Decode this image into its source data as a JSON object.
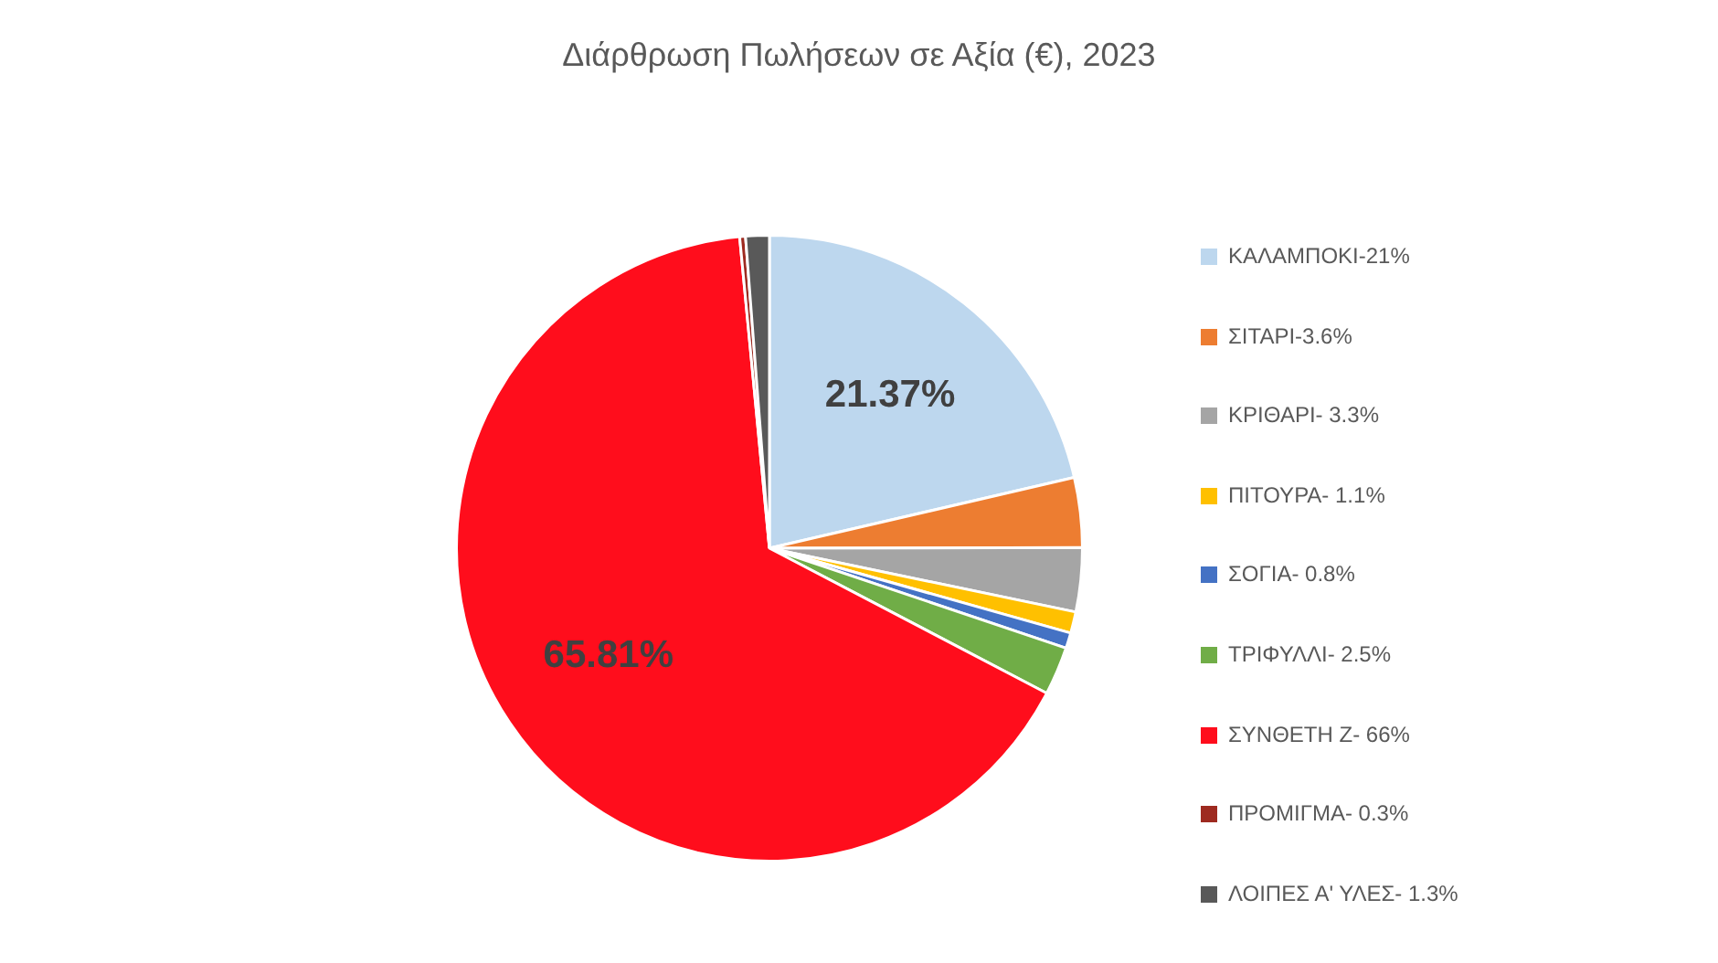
{
  "chart_data": {
    "type": "pie",
    "title": "Διάρθρωση Πωλήσεων σε Αξία (€), 2023",
    "categories": [
      "ΚΑΛΑΜΠΟΚΙ-21%",
      "ΣΙΤΑΡΙ-3.6%",
      "ΚΡΙΘΑΡΙ- 3.3%",
      "ΠΙΤΟΥΡΑ- 1.1%",
      "ΣΟΓΙΑ- 0.8%",
      "ΤΡΙΦΥΛΛΙ- 2.5%",
      "ΣΥΝΘΕΤΗ Ζ- 66%",
      "ΠΡΟΜΙΓΜΑ- 0.3%",
      "ΛΟΙΠΕΣ Α' ΥΛΕΣ- 1.3%"
    ],
    "values": [
      21.37,
      3.6,
      3.3,
      1.1,
      0.8,
      2.5,
      65.81,
      0.3,
      1.22
    ],
    "value_labels": [
      "21.37%",
      null,
      null,
      null,
      null,
      null,
      "65.81%",
      null,
      null
    ],
    "colors": [
      "#bdd7ee",
      "#ed7d31",
      "#a5a5a5",
      "#ffc000",
      "#4472c4",
      "#70ad47",
      "#ff0d1c",
      "#9e2a20",
      "#595959"
    ],
    "legend": "right"
  }
}
